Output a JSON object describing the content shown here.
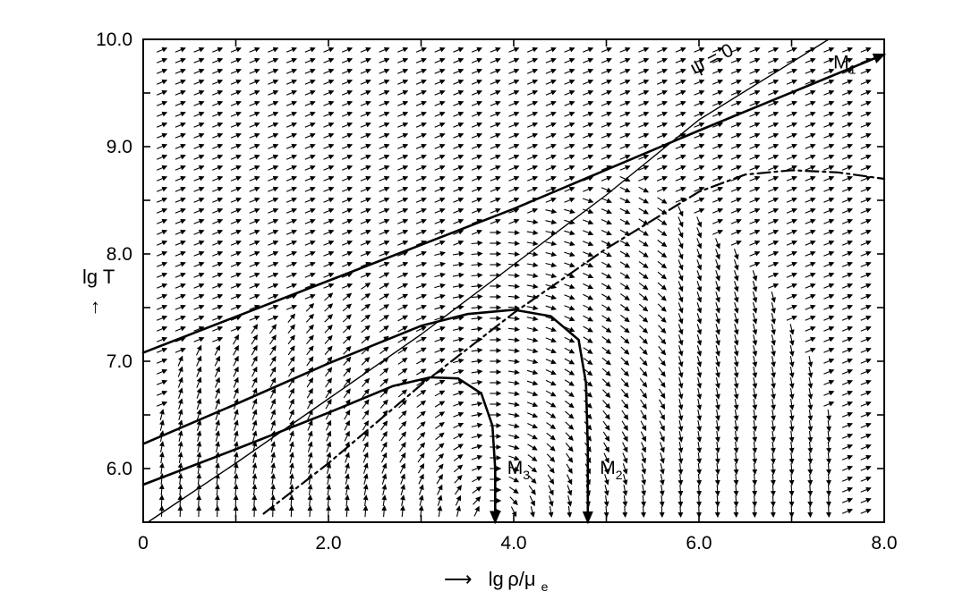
{
  "chart_data": {
    "type": "line",
    "title": "",
    "xlabel": "lg ρ/μ",
    "xlabel_subscript": "e",
    "xlabel_arrow": "⟶",
    "ylabel": "lg T",
    "ylabel_arrow": "↑",
    "xlim": [
      0,
      8.0
    ],
    "ylim": [
      5.5,
      10.0
    ],
    "x_ticks": [
      0,
      1,
      2,
      3,
      4,
      5,
      6,
      7,
      8
    ],
    "y_ticks": [
      6,
      6.5,
      7,
      7.5,
      8,
      8.5,
      9,
      9.5,
      10
    ],
    "x_tick_labels": [
      {
        "value": 0,
        "text": "0"
      },
      {
        "value": 2,
        "text": "2.0"
      },
      {
        "value": 4,
        "text": "4.0"
      },
      {
        "value": 6,
        "text": "6.0"
      },
      {
        "value": 8,
        "text": "8.0"
      }
    ],
    "y_tick_labels": [
      {
        "value": 6,
        "text": "6.0"
      },
      {
        "value": 7,
        "text": "7.0"
      },
      {
        "value": 8,
        "text": "8.0"
      },
      {
        "value": 9,
        "text": "9.0"
      },
      {
        "value": 10,
        "text": "10.0"
      }
    ],
    "grid": false,
    "legend": "none",
    "vector_field": {
      "x_range": [
        0.2,
        7.8
      ],
      "x_step": 0.2,
      "y_range": [
        5.6,
        9.9
      ],
      "y_step": 0.1,
      "flow_upper_slope": 0.35,
      "flow_inner_slope": 0.05
    },
    "series": [
      {
        "label": "M",
        "label_subscript": "1",
        "style": "solid-thick",
        "arrow_end": true,
        "points": [
          [
            0,
            7.08
          ],
          [
            2,
            7.75
          ],
          [
            4,
            8.42
          ],
          [
            6,
            9.15
          ],
          [
            8,
            9.86
          ]
        ],
        "label_at": [
          7.45,
          9.73
        ]
      },
      {
        "label": "ψ = 0",
        "label_subscript": "",
        "style": "solid-thin",
        "arrow_end": false,
        "points": [
          [
            0.05,
            5.5
          ],
          [
            1,
            6.05
          ],
          [
            2,
            6.65
          ],
          [
            3,
            7.25
          ],
          [
            4,
            7.9
          ],
          [
            5,
            8.55
          ],
          [
            6,
            9.25
          ],
          [
            7.4,
            10.0
          ]
        ],
        "label_at": [
          5.95,
          9.67
        ]
      },
      {
        "label": "M",
        "label_subscript": "2",
        "style": "solid-thick",
        "arrow_end": true,
        "points": [
          [
            0,
            6.23
          ],
          [
            1,
            6.6
          ],
          [
            2,
            6.98
          ],
          [
            3,
            7.33
          ],
          [
            3.5,
            7.44
          ],
          [
            4,
            7.48
          ],
          [
            4.4,
            7.42
          ],
          [
            4.7,
            7.2
          ],
          [
            4.78,
            6.8
          ],
          [
            4.8,
            6.2
          ],
          [
            4.8,
            5.5
          ]
        ],
        "label_at": [
          4.93,
          5.95
        ]
      },
      {
        "label": "M",
        "label_subscript": "3",
        "style": "solid-thick",
        "arrow_end": true,
        "points": [
          [
            0,
            5.85
          ],
          [
            1,
            6.18
          ],
          [
            2,
            6.52
          ],
          [
            2.7,
            6.77
          ],
          [
            3.1,
            6.85
          ],
          [
            3.4,
            6.84
          ],
          [
            3.65,
            6.7
          ],
          [
            3.77,
            6.4
          ],
          [
            3.8,
            6.0
          ],
          [
            3.8,
            5.5
          ]
        ],
        "label_at": [
          3.93,
          5.95
        ]
      },
      {
        "label": "",
        "label_subscript": "",
        "style": "dash-dot",
        "arrow_end": false,
        "points": [
          [
            1.3,
            5.58
          ],
          [
            2,
            6.05
          ],
          [
            3,
            6.78
          ],
          [
            4,
            7.45
          ],
          [
            5,
            8.05
          ],
          [
            6,
            8.58
          ],
          [
            6.5,
            8.74
          ],
          [
            7,
            8.78
          ],
          [
            7.5,
            8.76
          ],
          [
            8,
            8.7
          ]
        ],
        "label_at": null
      }
    ]
  }
}
